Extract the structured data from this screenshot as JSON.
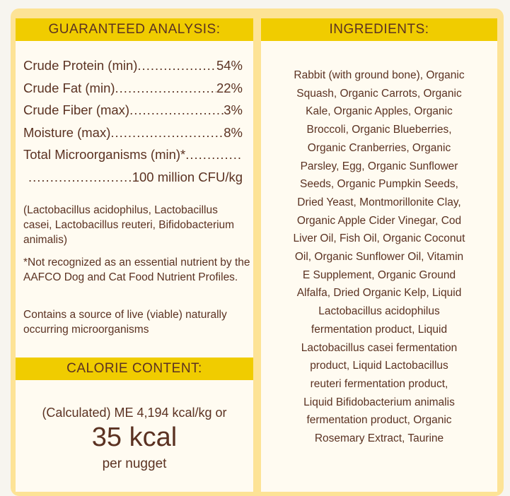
{
  "analysis": {
    "title": "GUARANTEED ANALYSIS:",
    "rows": [
      {
        "label": "Crude Protein (min)",
        "value": "54%"
      },
      {
        "label": "Crude Fat (min)",
        "value": "22%"
      },
      {
        "label": "Crude Fiber (max)",
        "value": "3%"
      },
      {
        "label": "Moisture (max)",
        "value": "8%"
      },
      {
        "label": "Total Microorganisms (min)*",
        "value": ""
      },
      {
        "label": "",
        "value": "100 million CFU/kg"
      }
    ],
    "strains": "(Lactobacillus acidophilus, Lactobacillus casei, Lactobacillus reuteri, Bifidobacterium animalis)",
    "footnote": "*Not recognized as an essential nutrient by the AAFCO Dog and Cat Food Nutrient Profiles.",
    "live_note": "Contains a source of live (viable) naturally occurring microorganisms"
  },
  "calorie": {
    "title": "CALORIE CONTENT:",
    "line1": "(Calculated) ME 4,194 kcal/kg or",
    "big": "35 kcal",
    "unit": "per nugget"
  },
  "ingredients": {
    "title": "INGREDIENTS:",
    "lines": [
      "Rabbit (with ground bone), Organic",
      "Squash, Organic Carrots, Organic",
      "Kale, Organic Apples, Organic",
      "Broccoli, Organic Blueberries,",
      "Organic Cranberries, Organic",
      "Parsley, Egg, Organic Sunflower",
      "Seeds, Organic Pumpkin Seeds,",
      "Dried Yeast, Montmorillonite Clay,",
      "Organic Apple Cider Vinegar, Cod",
      "Liver Oil, Fish Oil, Organic Coconut",
      "Oil, Organic Sunflower Oil, Vitamin",
      "E Supplement, Organic Ground",
      "Alfalfa, Dried Organic Kelp, Liquid",
      "Lactobacillus acidophilus",
      "fermentation product, Liquid",
      "Lactobacillus casei fermentation",
      "product, Liquid Lactobacillus",
      "reuteri fermentation product,",
      "Liquid Bifidobacterium animalis",
      "fermentation product, Organic",
      "Rosemary Extract, Taurine"
    ]
  }
}
